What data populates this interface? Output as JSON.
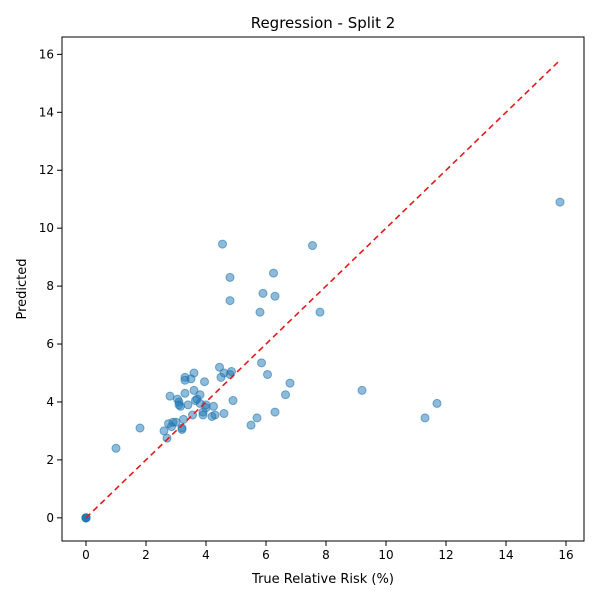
{
  "chart_data": {
    "type": "scatter",
    "title": "Regression - Split 2",
    "xlabel": "True Relative Risk (%)",
    "ylabel": "Predicted",
    "xlim": [
      -0.8,
      16.6
    ],
    "ylim": [
      -0.8,
      16.6
    ],
    "xticks": [
      0,
      2,
      4,
      6,
      8,
      10,
      12,
      14,
      16
    ],
    "yticks": [
      0,
      2,
      4,
      6,
      8,
      10,
      12,
      14,
      16
    ],
    "xtick_labels": [
      "0",
      "2",
      "4",
      "6",
      "8",
      "10",
      "12",
      "14",
      "16"
    ],
    "ytick_labels": [
      "0",
      "2",
      "4",
      "6",
      "8",
      "10",
      "12",
      "14",
      "16"
    ],
    "grid": false,
    "reference_line": {
      "style": "dashed",
      "color": "#e31a1c",
      "from": [
        0,
        0
      ],
      "to": [
        15.8,
        15.8
      ]
    },
    "point_color": "#1f77b4",
    "points": [
      [
        0,
        0
      ],
      [
        0,
        0
      ],
      [
        0,
        0
      ],
      [
        0,
        0
      ],
      [
        0,
        0
      ],
      [
        0,
        0
      ],
      [
        1.0,
        2.4
      ],
      [
        1.8,
        3.1
      ],
      [
        2.6,
        3.0
      ],
      [
        2.7,
        2.75
      ],
      [
        2.75,
        3.25
      ],
      [
        2.8,
        4.2
      ],
      [
        2.85,
        3.15
      ],
      [
        2.9,
        3.3
      ],
      [
        3.0,
        3.3
      ],
      [
        3.05,
        4.1
      ],
      [
        3.1,
        4.0
      ],
      [
        3.1,
        3.9
      ],
      [
        3.15,
        3.85
      ],
      [
        3.2,
        3.1
      ],
      [
        3.2,
        3.05
      ],
      [
        3.25,
        3.4
      ],
      [
        3.3,
        4.85
      ],
      [
        3.3,
        4.75
      ],
      [
        3.3,
        4.3
      ],
      [
        3.4,
        3.9
      ],
      [
        3.5,
        4.8
      ],
      [
        3.55,
        3.55
      ],
      [
        3.6,
        5.0
      ],
      [
        3.6,
        4.4
      ],
      [
        3.65,
        4.05
      ],
      [
        3.7,
        4.1
      ],
      [
        3.8,
        4.25
      ],
      [
        3.8,
        3.95
      ],
      [
        3.9,
        3.65
      ],
      [
        3.9,
        3.55
      ],
      [
        3.95,
        4.7
      ],
      [
        4.0,
        3.8
      ],
      [
        4.0,
        3.9
      ],
      [
        4.2,
        3.5
      ],
      [
        4.25,
        3.85
      ],
      [
        4.3,
        3.55
      ],
      [
        4.45,
        5.2
      ],
      [
        4.5,
        4.85
      ],
      [
        4.6,
        5.0
      ],
      [
        4.6,
        3.6
      ],
      [
        4.8,
        4.95
      ],
      [
        4.85,
        5.05
      ],
      [
        4.9,
        4.05
      ],
      [
        4.55,
        9.45
      ],
      [
        4.8,
        8.3
      ],
      [
        4.8,
        7.5
      ],
      [
        5.5,
        3.2
      ],
      [
        5.7,
        3.45
      ],
      [
        5.8,
        7.1
      ],
      [
        5.85,
        5.35
      ],
      [
        5.9,
        7.75
      ],
      [
        6.05,
        4.95
      ],
      [
        6.25,
        8.45
      ],
      [
        6.3,
        7.65
      ],
      [
        6.3,
        3.65
      ],
      [
        6.65,
        4.25
      ],
      [
        6.8,
        4.65
      ],
      [
        7.55,
        9.4
      ],
      [
        7.8,
        7.1
      ],
      [
        9.2,
        4.4
      ],
      [
        11.3,
        3.45
      ],
      [
        11.7,
        3.95
      ],
      [
        15.8,
        10.9
      ]
    ]
  }
}
